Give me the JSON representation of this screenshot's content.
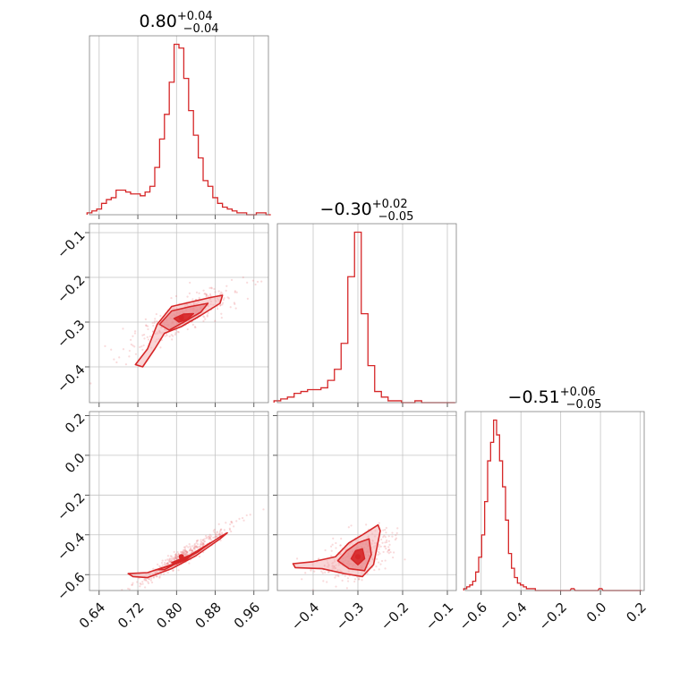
{
  "colors": {
    "accent": "#d62728",
    "fill_light": "#f4b3b4",
    "fill_mid": "#e8878a",
    "scatter": "#e87a7c"
  },
  "titles": [
    {
      "value": "0.80",
      "plus": "+0.04",
      "minus": "−0.04"
    },
    {
      "value": "−0.30",
      "plus": "+0.02",
      "minus": "−0.05"
    },
    {
      "value": "−0.51",
      "plus": "+0.06",
      "minus": "−0.05"
    }
  ],
  "chart_data": [
    {
      "type": "area",
      "panel": "p0_hist",
      "x": [
        0.62,
        0.63,
        0.64,
        0.65,
        0.66,
        0.67,
        0.68,
        0.69,
        0.7,
        0.71,
        0.72,
        0.73,
        0.74,
        0.75,
        0.76,
        0.77,
        0.78,
        0.79,
        0.8,
        0.81,
        0.82,
        0.83,
        0.84,
        0.85,
        0.86,
        0.87,
        0.88,
        0.89,
        0.9,
        0.91,
        0.92,
        0.93,
        0.94,
        0.95,
        0.96,
        0.97,
        0.98,
        0.99
      ],
      "values": [
        0.01,
        0.02,
        0.03,
        0.06,
        0.08,
        0.09,
        0.13,
        0.13,
        0.12,
        0.11,
        0.11,
        0.1,
        0.12,
        0.15,
        0.25,
        0.4,
        0.53,
        0.7,
        0.9,
        0.88,
        0.72,
        0.55,
        0.42,
        0.3,
        0.18,
        0.15,
        0.09,
        0.06,
        0.04,
        0.03,
        0.02,
        0.01,
        0.01,
        0.0,
        0.0,
        0.01,
        0.01,
        0.0
      ],
      "xlim": [
        0.62,
        0.99
      ],
      "xticks": [
        "0.64",
        "0.72",
        "0.80",
        "0.88",
        "0.96"
      ]
    },
    {
      "type": "area",
      "panel": "p1_hist",
      "x": [
        -0.48,
        -0.465,
        -0.45,
        -0.435,
        -0.42,
        -0.405,
        -0.39,
        -0.375,
        -0.36,
        -0.345,
        -0.33,
        -0.315,
        -0.3,
        -0.285,
        -0.27,
        -0.255,
        -0.24,
        -0.225,
        -0.21,
        -0.195,
        -0.18,
        -0.165,
        -0.15,
        -0.135,
        -0.12,
        -0.105,
        -0.09
      ],
      "values": [
        0.01,
        0.02,
        0.03,
        0.05,
        0.06,
        0.07,
        0.07,
        0.08,
        0.12,
        0.18,
        0.32,
        0.68,
        0.92,
        0.48,
        0.2,
        0.06,
        0.03,
        0.01,
        0.01,
        0.0,
        0.0,
        0.01,
        0.0,
        0.0,
        0.0,
        0.0,
        0.0
      ],
      "xlim": [
        -0.48,
        -0.08
      ],
      "xticks": [
        "−0.4",
        "−0.3",
        "−0.2",
        "−0.1"
      ]
    },
    {
      "type": "area",
      "panel": "p2_hist",
      "x": [
        -0.68,
        -0.665,
        -0.65,
        -0.635,
        -0.62,
        -0.605,
        -0.59,
        -0.575,
        -0.56,
        -0.545,
        -0.53,
        -0.515,
        -0.5,
        -0.485,
        -0.47,
        -0.455,
        -0.44,
        -0.425,
        -0.41,
        -0.395,
        -0.38,
        -0.365,
        -0.35,
        -0.335,
        -0.32,
        -0.3,
        -0.28,
        -0.26,
        -0.24,
        -0.22,
        -0.2,
        -0.18,
        -0.16,
        -0.14,
        -0.12,
        -0.1,
        -0.08,
        -0.06,
        -0.04,
        -0.02,
        0.0,
        0.02,
        0.04,
        0.06,
        0.08,
        0.1,
        0.12,
        0.14,
        0.16,
        0.18,
        0.2
      ],
      "values": [
        0.01,
        0.02,
        0.03,
        0.05,
        0.1,
        0.18,
        0.3,
        0.48,
        0.7,
        0.8,
        0.92,
        0.84,
        0.7,
        0.56,
        0.38,
        0.2,
        0.12,
        0.07,
        0.04,
        0.03,
        0.02,
        0.01,
        0.01,
        0.01,
        0.0,
        0.0,
        0.0,
        0.0,
        0.0,
        0.0,
        0.0,
        0.0,
        0.0,
        0.01,
        0.0,
        0.0,
        0.0,
        0.0,
        0.0,
        0.0,
        0.01,
        0.0,
        0.0,
        0.0,
        0.0,
        0.0,
        0.0,
        0.0,
        0.0,
        0.0,
        0.0
      ],
      "xlim": [
        -0.68,
        0.22
      ],
      "xticks": [
        "−0.6",
        "−0.4",
        "−0.2",
        "0.0",
        "0.2"
      ]
    },
    {
      "type": "scatter",
      "panel": "p10_2d",
      "xlim": [
        0.62,
        0.99
      ],
      "ylim": [
        -0.48,
        -0.08
      ],
      "yticks": [
        "−0.4",
        "−0.3",
        "−0.2",
        "−0.1"
      ],
      "center": [
        0.81,
        -0.29
      ],
      "slope": 0.55,
      "spread": [
        0.045,
        0.018
      ],
      "contours": [
        [
          [
            0.715,
            -0.395
          ],
          [
            0.74,
            -0.36
          ],
          [
            0.76,
            -0.305
          ],
          [
            0.79,
            -0.265
          ],
          [
            0.83,
            -0.255
          ],
          [
            0.87,
            -0.245
          ],
          [
            0.895,
            -0.24
          ],
          [
            0.89,
            -0.258
          ],
          [
            0.85,
            -0.285
          ],
          [
            0.81,
            -0.31
          ],
          [
            0.775,
            -0.325
          ],
          [
            0.755,
            -0.36
          ],
          [
            0.73,
            -0.4
          ]
        ],
        [
          [
            0.765,
            -0.305
          ],
          [
            0.79,
            -0.275
          ],
          [
            0.83,
            -0.265
          ],
          [
            0.865,
            -0.258
          ],
          [
            0.85,
            -0.278
          ],
          [
            0.815,
            -0.3
          ],
          [
            0.785,
            -0.318
          ]
        ],
        [
          [
            0.795,
            -0.292
          ],
          [
            0.815,
            -0.282
          ],
          [
            0.835,
            -0.281
          ],
          [
            0.822,
            -0.294
          ],
          [
            0.805,
            -0.3
          ]
        ]
      ]
    },
    {
      "type": "scatter",
      "panel": "p20_2d",
      "xlim": [
        0.62,
        0.99
      ],
      "ylim": [
        -0.68,
        0.22
      ],
      "yticks": [
        "−0.6",
        "−0.4",
        "−0.2",
        "0.0",
        "0.2"
      ],
      "center": [
        0.81,
        -0.51
      ],
      "slope": 1.5,
      "spread": [
        0.045,
        0.02
      ],
      "contours": [
        [
          [
            0.7,
            -0.595
          ],
          [
            0.74,
            -0.59
          ],
          [
            0.79,
            -0.55
          ],
          [
            0.84,
            -0.49
          ],
          [
            0.89,
            -0.41
          ],
          [
            0.905,
            -0.39
          ],
          [
            0.89,
            -0.42
          ],
          [
            0.84,
            -0.505
          ],
          [
            0.79,
            -0.57
          ],
          [
            0.74,
            -0.615
          ],
          [
            0.71,
            -0.61
          ]
        ],
        [
          [
            0.76,
            -0.575
          ],
          [
            0.8,
            -0.545
          ],
          [
            0.845,
            -0.485
          ],
          [
            0.87,
            -0.44
          ],
          [
            0.85,
            -0.47
          ],
          [
            0.81,
            -0.53
          ],
          [
            0.775,
            -0.575
          ]
        ],
        [
          [
            0.79,
            -0.54
          ],
          [
            0.815,
            -0.515
          ],
          [
            0.835,
            -0.495
          ],
          [
            0.82,
            -0.525
          ],
          [
            0.8,
            -0.545
          ]
        ]
      ]
    },
    {
      "type": "scatter",
      "panel": "p21_2d",
      "xlim": [
        -0.48,
        -0.08
      ],
      "ylim": [
        -0.68,
        0.22
      ],
      "yticks": [],
      "center": [
        -0.3,
        -0.51
      ],
      "slope": 0.7,
      "spread": [
        0.035,
        0.05
      ],
      "contours": [
        [
          [
            -0.445,
            -0.545
          ],
          [
            -0.4,
            -0.535
          ],
          [
            -0.35,
            -0.51
          ],
          [
            -0.32,
            -0.44
          ],
          [
            -0.29,
            -0.4
          ],
          [
            -0.255,
            -0.35
          ],
          [
            -0.25,
            -0.38
          ],
          [
            -0.265,
            -0.55
          ],
          [
            -0.29,
            -0.61
          ],
          [
            -0.33,
            -0.595
          ],
          [
            -0.38,
            -0.57
          ],
          [
            -0.44,
            -0.565
          ]
        ],
        [
          [
            -0.345,
            -0.53
          ],
          [
            -0.325,
            -0.48
          ],
          [
            -0.3,
            -0.44
          ],
          [
            -0.275,
            -0.42
          ],
          [
            -0.27,
            -0.5
          ],
          [
            -0.285,
            -0.58
          ],
          [
            -0.32,
            -0.57
          ]
        ],
        [
          [
            -0.315,
            -0.52
          ],
          [
            -0.305,
            -0.48
          ],
          [
            -0.29,
            -0.47
          ],
          [
            -0.285,
            -0.52
          ],
          [
            -0.3,
            -0.55
          ]
        ]
      ]
    }
  ]
}
